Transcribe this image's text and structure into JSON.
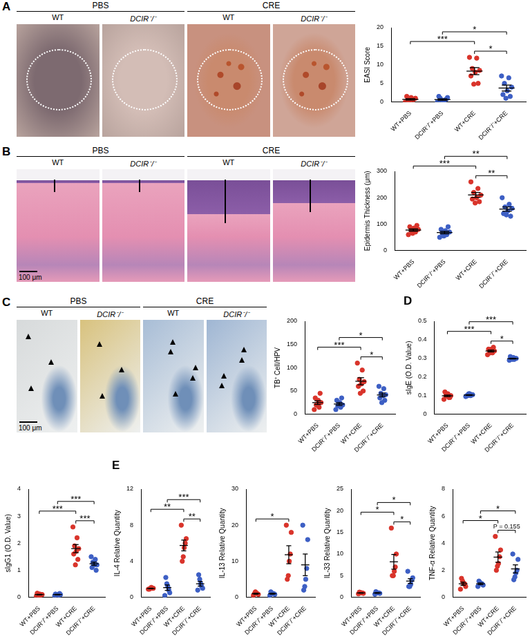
{
  "panels": [
    {
      "label": "A",
      "groups": [
        "PBS",
        "CRE"
      ],
      "columns": [
        "WT",
        "DCIR⁻/⁻",
        "WT",
        "DCIR⁻/⁻"
      ]
    },
    {
      "label": "B",
      "groups": [
        "PBS",
        "CRE"
      ],
      "columns": [
        "WT",
        "DCIR⁻/⁻",
        "WT",
        "DCIR⁻/⁻"
      ],
      "scale_bar": "100 μm"
    },
    {
      "label": "C",
      "groups": [
        "PBS",
        "CRE"
      ],
      "columns": [
        "WT",
        "DCIR⁻/⁻",
        "WT",
        "DCIR⁻/⁻"
      ],
      "scale_bar": "100 μm"
    },
    {
      "label": "D"
    },
    {
      "label": "E"
    }
  ],
  "chart_data": [
    {
      "type": "scatter",
      "ylabel": "EASI Score",
      "categories": [
        "WT+PBS",
        "DCIR⁻/⁻+PBS",
        "WT+CRE",
        "DCIR⁻/⁻+CRE"
      ],
      "colors": [
        "#d9342b",
        "#3d5fc4",
        "#d9342b",
        "#3d5fc4"
      ],
      "values": [
        [
          0,
          0.3,
          0.5,
          1,
          1.2,
          1.5,
          0.8,
          0.2
        ],
        [
          0,
          0.5,
          1,
          1.2,
          0.3,
          1.5,
          0.7,
          0
        ],
        [
          12,
          11.8,
          9,
          8.5,
          8,
          7,
          5,
          4.8
        ],
        [
          7,
          6.5,
          5,
          4,
          3,
          2,
          1.5,
          1
        ]
      ],
      "means": [
        0.7,
        0.65,
        8.3,
        3.75
      ],
      "errors": [
        0.2,
        0.2,
        0.95,
        0.8
      ],
      "ylim": [
        0,
        20
      ],
      "yticks": [
        0,
        5,
        10,
        15,
        20
      ],
      "grid": false,
      "annotations": [
        {
          "between": [
            "WT+PBS",
            "WT+CRE"
          ],
          "label": "***"
        },
        {
          "between": [
            "WT+CRE",
            "DCIR⁻/⁻+CRE"
          ],
          "label": "*"
        },
        {
          "between": [
            "DCIR⁻/⁻+PBS",
            "DCIR⁻/⁻+CRE"
          ],
          "label": "*"
        }
      ]
    },
    {
      "type": "scatter",
      "ylabel": "Epidermis Thickness (μm)",
      "categories": [
        "WT+PBS",
        "DCIR⁻/⁻+PBS",
        "WT+CRE",
        "DCIR⁻/⁻+CRE"
      ],
      "colors": [
        "#d9342b",
        "#3d5fc4",
        "#d9342b",
        "#3d5fc4"
      ],
      "values": [
        [
          60,
          70,
          75,
          80,
          85,
          90,
          95,
          65
        ],
        [
          50,
          60,
          65,
          70,
          75,
          80,
          90,
          55
        ],
        [
          260,
          235,
          220,
          210,
          200,
          195,
          185,
          180
        ],
        [
          200,
          175,
          165,
          160,
          150,
          140,
          130,
          135
        ]
      ],
      "means": [
        77.5,
        68,
        210.6,
        157
      ],
      "errors": [
        4.3,
        4.7,
        9.3,
        8
      ],
      "ylim": [
        0,
        300
      ],
      "yticks": [
        0,
        100,
        200,
        300
      ],
      "grid": false,
      "annotations": [
        {
          "between": [
            "WT+PBS",
            "WT+CRE"
          ],
          "label": "***"
        },
        {
          "between": [
            "WT+CRE",
            "DCIR⁻/⁻+CRE"
          ],
          "label": "**"
        },
        {
          "between": [
            "DCIR⁻/⁻+PBS",
            "DCIR⁻/⁻+CRE"
          ],
          "label": "**"
        }
      ]
    },
    {
      "type": "scatter",
      "ylabel": "TB⁺ Cell/HPV",
      "categories": [
        "WT+PBS",
        "DCIR⁻/⁻+PBS",
        "WT+CRE",
        "DCIR⁻/⁻+CRE"
      ],
      "colors": [
        "#d9342b",
        "#3d5fc4",
        "#d9342b",
        "#3d5fc4"
      ],
      "values": [
        [
          10,
          15,
          20,
          25,
          30,
          35,
          45,
          20
        ],
        [
          10,
          15,
          18,
          20,
          25,
          30,
          35,
          22
        ],
        [
          110,
          95,
          75,
          70,
          65,
          60,
          50,
          45
        ],
        [
          60,
          55,
          45,
          42,
          40,
          35,
          30,
          25
        ]
      ],
      "means": [
        25,
        22,
        71,
        41.5
      ],
      "errors": [
        4,
        3,
        7.6,
        4
      ],
      "ylim": [
        0,
        200
      ],
      "yticks": [
        0,
        50,
        100,
        150,
        200
      ],
      "grid": false,
      "annotations": [
        {
          "between": [
            "WT+PBS",
            "WT+CRE"
          ],
          "label": "***"
        },
        {
          "between": [
            "WT+CRE",
            "DCIR⁻/⁻+CRE"
          ],
          "label": "*"
        },
        {
          "between": [
            "DCIR⁻/⁻+PBS",
            "DCIR⁻/⁻+CRE"
          ],
          "label": "*"
        }
      ]
    },
    {
      "type": "scatter",
      "ylabel": "sIgE (O.D. Value)",
      "categories": [
        "WT+PBS",
        "DCIR⁻/⁻+PBS",
        "WT+CRE",
        "DCIR⁻/⁻+CRE"
      ],
      "colors": [
        "#d9342b",
        "#3d5fc4",
        "#d9342b",
        "#3d5fc4"
      ],
      "values": [
        [
          0.08,
          0.09,
          0.1,
          0.1,
          0.11,
          0.12,
          0.09,
          0.1
        ],
        [
          0.095,
          0.1,
          0.1,
          0.105,
          0.11,
          0.1,
          0.105,
          0.11
        ],
        [
          0.32,
          0.33,
          0.34,
          0.34,
          0.35,
          0.35,
          0.36,
          0.33
        ],
        [
          0.29,
          0.295,
          0.3,
          0.3,
          0.305,
          0.31,
          0.3,
          0.295
        ]
      ],
      "means": [
        0.099,
        0.103,
        0.34,
        0.299
      ],
      "errors": [
        0.004,
        0.002,
        0.005,
        0.002
      ],
      "ylim": [
        0,
        0.5
      ],
      "yticks": [
        0,
        0.1,
        0.2,
        0.3,
        0.4,
        0.5
      ],
      "grid": false,
      "annotations": [
        {
          "between": [
            "WT+PBS",
            "WT+CRE"
          ],
          "label": "***"
        },
        {
          "between": [
            "WT+CRE",
            "DCIR⁻/⁻+CRE"
          ],
          "label": "*"
        },
        {
          "between": [
            "DCIR⁻/⁻+PBS",
            "DCIR⁻/⁻+CRE"
          ],
          "label": "***"
        }
      ]
    },
    {
      "type": "scatter",
      "ylabel": "sIgG1 (O.D. Value)",
      "categories": [
        "WT+PBS",
        "DCIR⁻/⁻+PBS",
        "WT+CRE",
        "DCIR⁻/⁻+CRE"
      ],
      "colors": [
        "#d9342b",
        "#3d5fc4",
        "#d9342b",
        "#3d5fc4"
      ],
      "values": [
        [
          0.05,
          0.08,
          0.1,
          0.1,
          0.12,
          0.15,
          0.1,
          0.08
        ],
        [
          0.06,
          0.08,
          0.1,
          0.1,
          0.1,
          0.12,
          0.14,
          0.1
        ],
        [
          2.6,
          2.2,
          1.9,
          1.8,
          1.7,
          1.6,
          1.4,
          1.2
        ],
        [
          1.5,
          1.4,
          1.3,
          1.2,
          1.2,
          1.1,
          1.0,
          1.2
        ]
      ],
      "means": [
        0.1,
        0.1,
        1.8,
        1.24
      ],
      "errors": [
        0.01,
        0.01,
        0.15,
        0.06
      ],
      "ylim": [
        0,
        4
      ],
      "yticks": [
        0,
        1,
        2,
        3,
        4
      ],
      "grid": false,
      "annotations": [
        {
          "between": [
            "WT+PBS",
            "WT+CRE"
          ],
          "label": "***"
        },
        {
          "between": [
            "WT+CRE",
            "DCIR⁻/⁻+CRE"
          ],
          "label": "***"
        },
        {
          "between": [
            "DCIR⁻/⁻+PBS",
            "DCIR⁻/⁻+CRE"
          ],
          "label": "***"
        }
      ]
    },
    {
      "type": "scatter",
      "ylabel": "IL-4 Relative Quantity",
      "categories": [
        "WT+PBS",
        "DCIR⁻/⁻+PBS",
        "WT+CRE",
        "DCIR⁻/⁻+CRE"
      ],
      "colors": [
        "#d9342b",
        "#3d5fc4",
        "#d9342b",
        "#3d5fc4"
      ],
      "values": [
        [
          0.9,
          1,
          1,
          1.1,
          1,
          0.9
        ],
        [
          0.2,
          0.5,
          0.8,
          1.2,
          1.5,
          2.2
        ],
        [
          8,
          6.5,
          6,
          5.5,
          4.5,
          4
        ],
        [
          0.8,
          1,
          1.2,
          1.5,
          2,
          2.5
        ]
      ],
      "means": [
        0.98,
        1.07,
        5.75,
        1.5
      ],
      "errors": [
        0.03,
        0.3,
        0.6,
        0.26
      ],
      "ylim": [
        0,
        12
      ],
      "yticks": [
        0,
        4,
        8,
        12
      ],
      "grid": false,
      "annotations": [
        {
          "between": [
            "WT+PBS",
            "WT+CRE"
          ],
          "label": "**"
        },
        {
          "between": [
            "WT+CRE",
            "DCIR⁻/⁻+CRE"
          ],
          "label": "**"
        },
        {
          "between": [
            "DCIR⁻/⁻+PBS",
            "DCIR⁻/⁻+CRE"
          ],
          "label": "***"
        }
      ]
    },
    {
      "type": "scatter",
      "ylabel": "IL-13 Relative Quantity",
      "categories": [
        "WT+PBS",
        "DCIR⁻/⁻+PBS",
        "WT+CRE",
        "DCIR⁻/⁻+CRE"
      ],
      "colors": [
        "#d9342b",
        "#3d5fc4",
        "#d9342b",
        "#3d5fc4"
      ],
      "values": [
        [
          0.5,
          0.8,
          1,
          1.2,
          1.5,
          1
        ],
        [
          0.5,
          0.8,
          1,
          1,
          1.2,
          1.5
        ],
        [
          20,
          18,
          12,
          10,
          6,
          5
        ],
        [
          20,
          16,
          8,
          5,
          3,
          2
        ]
      ],
      "means": [
        1.0,
        1.0,
        11.8,
        9
      ],
      "errors": [
        0.14,
        0.14,
        2.5,
        3
      ],
      "ylim": [
        0,
        30
      ],
      "yticks": [
        0,
        10,
        20,
        30
      ],
      "grid": false,
      "annotations": [
        {
          "between": [
            "WT+PBS",
            "WT+CRE"
          ],
          "label": "*"
        }
      ]
    },
    {
      "type": "scatter",
      "ylabel": "IL-33 Relative Quantity",
      "categories": [
        "WT+PBS",
        "DCIR⁻/⁻+PBS",
        "WT+CRE",
        "DCIR⁻/⁻+CRE"
      ],
      "colors": [
        "#d9342b",
        "#3d5fc4",
        "#d9342b",
        "#3d5fc4"
      ],
      "values": [
        [
          0.8,
          0.9,
          1,
          1,
          1.1,
          1.2
        ],
        [
          0.7,
          0.9,
          1,
          1,
          1.1,
          1.3
        ],
        [
          16,
          10,
          7,
          6,
          5,
          5
        ],
        [
          6,
          4.5,
          4,
          3,
          2.5,
          2.5
        ]
      ],
      "means": [
        1,
        1,
        8.2,
        3.75
      ],
      "errors": [
        0.06,
        0.08,
        1.7,
        0.55
      ],
      "ylim": [
        0,
        25
      ],
      "yticks": [
        0,
        5,
        10,
        15,
        20,
        25
      ],
      "grid": false,
      "annotations": [
        {
          "between": [
            "WT+PBS",
            "WT+CRE"
          ],
          "label": "*"
        },
        {
          "between": [
            "WT+CRE",
            "DCIR⁻/⁻+CRE"
          ],
          "label": "*"
        },
        {
          "between": [
            "DCIR⁻/⁻+PBS",
            "DCIR⁻/⁻+CRE"
          ],
          "label": "*"
        }
      ]
    },
    {
      "type": "scatter",
      "ylabel": "TNF-α Relative Quantity",
      "categories": [
        "WT+PBS",
        "DCIR⁻/⁻+PBS",
        "WT+CRE",
        "DCIR⁻/⁻+CRE"
      ],
      "colors": [
        "#d9342b",
        "#3d5fc4",
        "#d9342b",
        "#3d5fc4"
      ],
      "values": [
        [
          0.6,
          0.8,
          1,
          1,
          1.2,
          1.4
        ],
        [
          0.8,
          0.9,
          1,
          1,
          1.1,
          1.2
        ],
        [
          4.5,
          3.5,
          3,
          2.5,
          2.3,
          2
        ],
        [
          3.2,
          2.8,
          2,
          1.8,
          1.5,
          1.3
        ]
      ],
      "means": [
        1,
        1,
        2.97,
        2.1
      ],
      "errors": [
        0.12,
        0.06,
        0.38,
        0.3
      ],
      "ylim": [
        0,
        8
      ],
      "yticks": [
        0,
        2,
        4,
        6,
        8
      ],
      "grid": false,
      "annotations": [
        {
          "between": [
            "WT+PBS",
            "WT+CRE"
          ],
          "label": "*"
        },
        {
          "between": [
            "DCIR⁻/⁻+PBS",
            "DCIR⁻/⁻+CRE"
          ],
          "label": "*"
        },
        {
          "between": [
            "WT+CRE",
            "DCIR⁻/⁻+CRE"
          ],
          "label": "P = 0.155"
        }
      ]
    }
  ]
}
